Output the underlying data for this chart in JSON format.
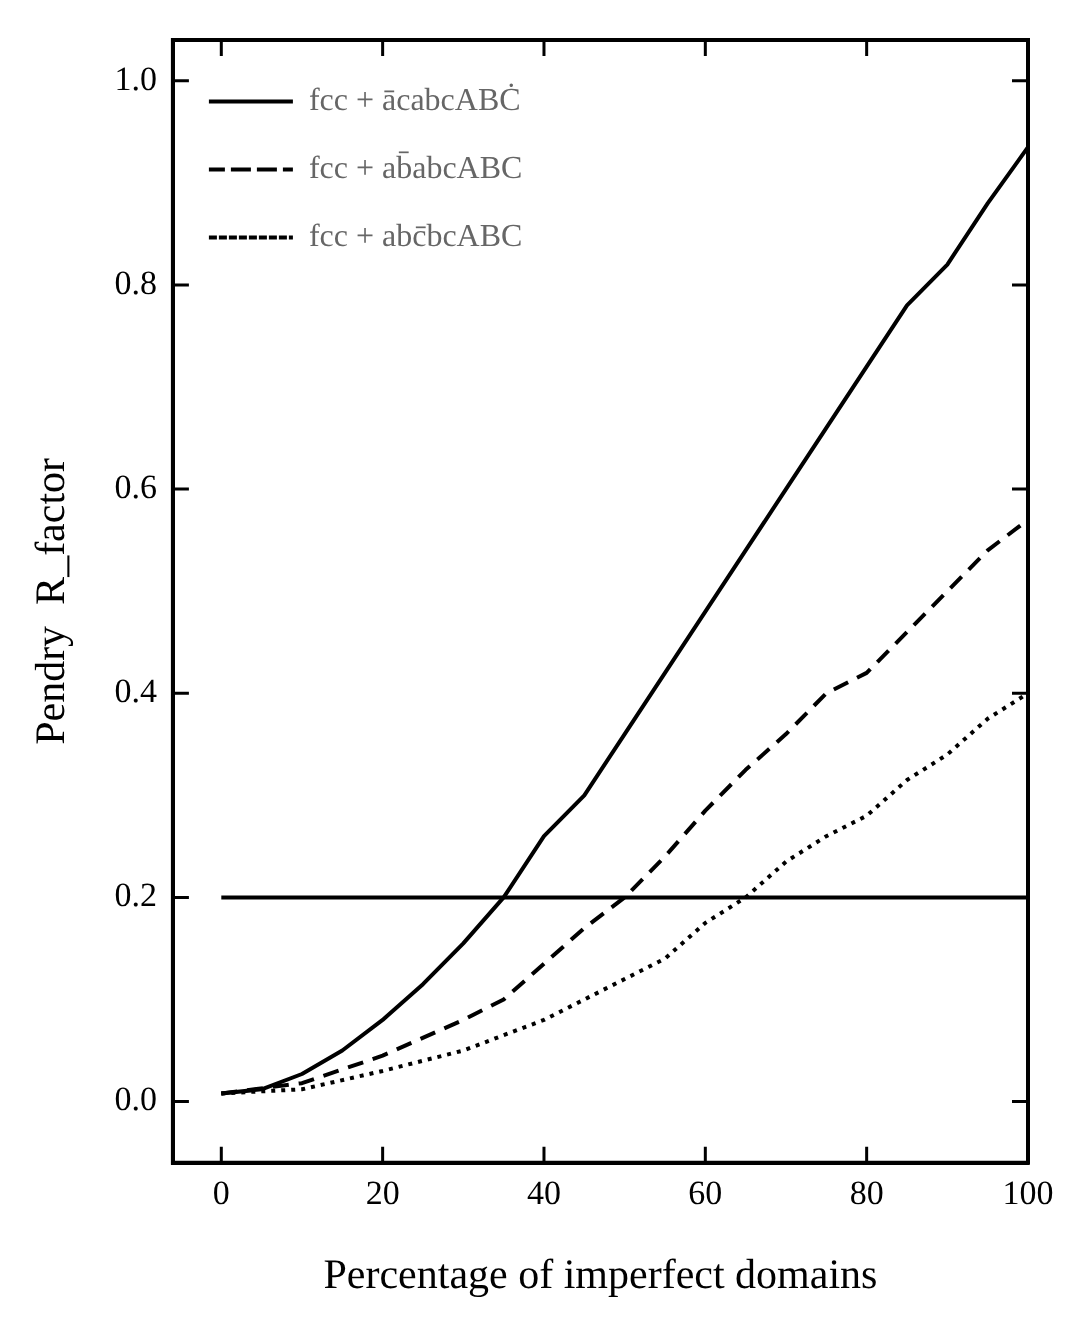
{
  "chart_data": {
    "type": "line",
    "xlabel": "Percentage of imperfect domains",
    "ylabel": "Pendry  R_factor",
    "xlim": [
      -6,
      100
    ],
    "ylim": [
      -0.06,
      1.04
    ],
    "xticks": [
      0,
      20,
      40,
      60,
      80,
      100
    ],
    "yticks": [
      {
        "value": 0,
        "label": "0.0"
      },
      {
        "value": 0.2,
        "label": "0.2"
      },
      {
        "value": 0.4,
        "label": "0.4"
      },
      {
        "value": 0.6,
        "label": "0.6"
      },
      {
        "value": 0.8,
        "label": "0.8"
      },
      {
        "value": 1,
        "label": "1.0"
      }
    ],
    "grid": false,
    "legend": "top left",
    "marker": "none",
    "ref_lines": [
      {
        "axis": "y",
        "value": 0.2,
        "color": "#000000"
      }
    ],
    "series": [
      {
        "name": "fcc + ācabcABĊ",
        "color": "#000000",
        "line_style": "solid",
        "x": [
          0,
          5,
          10,
          15,
          20,
          25,
          30,
          35,
          40,
          45,
          50,
          55,
          60,
          65,
          70,
          75,
          80,
          85,
          90,
          95,
          100
        ],
        "values": [
          0.008,
          0.012,
          0.027,
          0.05,
          0.08,
          0.115,
          0.155,
          0.2,
          0.26,
          0.3,
          0.36,
          0.42,
          0.48,
          0.54,
          0.6,
          0.66,
          0.72,
          0.78,
          0.82,
          0.88,
          0.935
        ]
      },
      {
        "name": "fcc + ab̄abcABC",
        "color": "#000000",
        "line_style": "dashed",
        "x": [
          0,
          10,
          20,
          30,
          35,
          40,
          45,
          50,
          55,
          60,
          65,
          70,
          75,
          80,
          85,
          90,
          95,
          100
        ],
        "values": [
          0.008,
          0.018,
          0.045,
          0.08,
          0.1,
          0.135,
          0.17,
          0.2,
          0.24,
          0.285,
          0.325,
          0.36,
          0.4,
          0.42,
          0.46,
          0.5,
          0.54,
          0.57
        ]
      },
      {
        "name": "fcc + abc̄bcABC",
        "color": "#000000",
        "line_style": "dotted",
        "x": [
          0,
          10,
          20,
          30,
          40,
          50,
          55,
          60,
          65,
          70,
          75,
          80,
          85,
          90,
          95,
          100
        ],
        "values": [
          0.008,
          0.012,
          0.03,
          0.05,
          0.08,
          0.12,
          0.14,
          0.175,
          0.2,
          0.235,
          0.26,
          0.28,
          0.315,
          0.34,
          0.375,
          0.4
        ]
      }
    ]
  }
}
